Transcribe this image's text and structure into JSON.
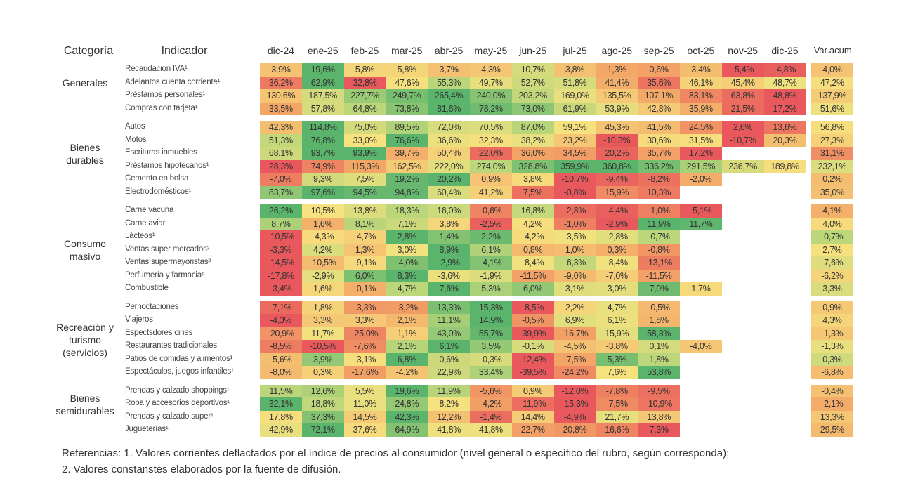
{
  "header": {
    "category": "Categoría",
    "indicator": "Indicador",
    "months": [
      "dic-24",
      "ene-25",
      "feb-25",
      "mar-25",
      "abr-25",
      "may-25",
      "jun-25",
      "jul-25",
      "ago-25",
      "sep-25",
      "oct-25",
      "nov-25",
      "dic-25"
    ],
    "acum": "Var.acum."
  },
  "colors": {
    "low": "#e8585c",
    "midlow": "#f3a466",
    "mid": "#f6e27f",
    "midhigh": "#b9d57a",
    "high": "#5bb46c"
  },
  "chart_data": {
    "type": "heatmap",
    "unit": "%",
    "groups": [
      {
        "category": "Generales",
        "rows": [
          {
            "name": "Recaudación IVA¹",
            "values": [
              3.9,
              19.6,
              5.8,
              5.8,
              3.7,
              4.3,
              10.7,
              3.8,
              1.3,
              0.6,
              3.4,
              -5.4,
              -4.8
            ],
            "acum": 4.0
          },
          {
            "name": "Adelantos cuenta corriente¹",
            "values": [
              36.2,
              62.9,
              32.8,
              47.6,
              55.3,
              49.7,
              52.7,
              51.8,
              41.4,
              35.6,
              46.1,
              45.4,
              48.7
            ],
            "acum": 47.2
          },
          {
            "name": "Préstamos personales¹",
            "values": [
              130.6,
              187.5,
              227.7,
              249.7,
              265.4,
              240.0,
              203.2,
              169.0,
              135.5,
              107.1,
              83.1,
              63.8,
              48.8
            ],
            "acum": 137.9
          },
          {
            "name": "Compras con tarjeta¹",
            "values": [
              33.5,
              57.8,
              64.8,
              73.8,
              81.6,
              78.2,
              73.0,
              61.9,
              53.9,
              42.8,
              35.9,
              21.5,
              17.2
            ],
            "acum": 51.6
          }
        ]
      },
      {
        "category": "Bienes durables",
        "rows": [
          {
            "name": "Autos",
            "values": [
              42.3,
              114.8,
              75.0,
              89.5,
              72.0,
              70.5,
              87.0,
              59.1,
              45.3,
              41.5,
              24.5,
              2.6,
              13.6
            ],
            "acum": 56.8
          },
          {
            "name": "Motos",
            "values": [
              51.3,
              76.8,
              33.0,
              76.6,
              36.6,
              32.3,
              38.2,
              23.2,
              -10.3,
              30.6,
              31.5,
              -10.7,
              20.3
            ],
            "acum": 27.3
          },
          {
            "name": "Escrituras inmuebles",
            "values": [
              68.1,
              93.7,
              93.9,
              39.7,
              50.4,
              22.0,
              36.0,
              34.5,
              20.2,
              35.7,
              17.2,
              null,
              null
            ],
            "acum": 31.1
          },
          {
            "name": "Préstamos hipotecarios¹",
            "values": [
              28.3,
              74.9,
              115.3,
              162.5,
              222.0,
              274.0,
              328.8,
              359.9,
              360.8,
              336.2,
              291.5,
              236.7,
              189.8
            ],
            "acum": 232.1
          },
          {
            "name": "Cemento en bolsa",
            "values": [
              -7.0,
              9.3,
              7.5,
              19.2,
              20.2,
              0.9,
              3.8,
              -10.7,
              -9.4,
              -8.2,
              -2.0,
              null,
              null
            ],
            "acum": 0.2
          },
          {
            "name": "Electrodomésticos¹",
            "values": [
              83.7,
              97.6,
              94.5,
              94.8,
              60.4,
              41.2,
              7.5,
              -0.8,
              15.9,
              10.3,
              null,
              null,
              null
            ],
            "acum": 35.0
          }
        ]
      },
      {
        "category": "Consumo masivo",
        "rows": [
          {
            "name": "Carne vacuna",
            "values": [
              26.2,
              10.5,
              13.8,
              18.3,
              16.0,
              -0.6,
              16.8,
              -2.8,
              -4.4,
              -1.0,
              -5.1,
              null,
              null
            ],
            "acum": 4.1
          },
          {
            "name": "Carne aviar",
            "values": [
              8.7,
              1.6,
              8.1,
              7.1,
              3.8,
              -2.5,
              4.2,
              -1.0,
              -2.9,
              11.9,
              11.7,
              null,
              null
            ],
            "acum": 4.0
          },
          {
            "name": "Lácteos¹",
            "values": [
              -10.5,
              -4.3,
              -4.7,
              2.8,
              1.4,
              2.2,
              -4.2,
              -3.5,
              -2.8,
              -0.7,
              null,
              null,
              null
            ],
            "acum": -0.7
          },
          {
            "name": "Ventas super mercados²",
            "values": [
              -3.3,
              4.2,
              1.3,
              3.0,
              8.9,
              6.1,
              0.8,
              1.0,
              0.3,
              -0.8,
              null,
              null,
              null
            ],
            "acum": 2.7
          },
          {
            "name": "Ventas supermayoristas²",
            "values": [
              -14.5,
              -10.5,
              -9.1,
              -4.0,
              -2.9,
              -4.1,
              -8.4,
              -6.3,
              -8.4,
              -13.1,
              null,
              null,
              null
            ],
            "acum": -7.6
          },
          {
            "name": "Perfumería y farmacia¹",
            "values": [
              -17.8,
              -2.9,
              6.0,
              8.3,
              -3.6,
              -1.9,
              -11.5,
              -9.0,
              -7.0,
              -11.5,
              null,
              null,
              null
            ],
            "acum": -6.2
          },
          {
            "name": "Combustible",
            "values": [
              -3.4,
              1.6,
              -0.1,
              4.7,
              7.6,
              5.3,
              6.0,
              3.1,
              3.0,
              7.0,
              1.7,
              null,
              null
            ],
            "acum": 3.3
          }
        ]
      },
      {
        "category": "Recreación y turismo (servicios)",
        "rows": [
          {
            "name": "Pernoctaciones",
            "values": [
              -7.1,
              1.8,
              -3.3,
              -3.2,
              13.3,
              15.3,
              -8.5,
              2.2,
              4.7,
              -0.5,
              null,
              null,
              null
            ],
            "acum": 0.9
          },
          {
            "name": "Viajeros",
            "values": [
              -4.3,
              3.3,
              3.3,
              2.1,
              11.1,
              14.9,
              -0.5,
              6.9,
              6.1,
              1.8,
              null,
              null,
              null
            ],
            "acum": 4.3
          },
          {
            "name": "Espectsdores cines",
            "values": [
              -20.9,
              11.7,
              -25.0,
              1.1,
              43.0,
              55.7,
              -39.9,
              -16.7,
              15.9,
              58.3,
              null,
              null,
              null
            ],
            "acum": -1.3
          },
          {
            "name": "Restaurantes tradicionales",
            "values": [
              -8.5,
              -10.5,
              -7.6,
              2.1,
              6.1,
              3.5,
              -0.1,
              -4.5,
              -3.8,
              0.1,
              -4.0,
              null,
              null
            ],
            "acum": -1.3
          },
          {
            "name": "Patios de comidas y alimentos¹",
            "values": [
              -5.6,
              3.9,
              -3.1,
              6.8,
              0.6,
              -0.3,
              -12.4,
              -7.5,
              5.3,
              1.8,
              null,
              null,
              null
            ],
            "acum": 0.3
          },
          {
            "name": "Espectáculos, juegos infantiles¹",
            "values": [
              -8.0,
              0.3,
              -17.6,
              -4.2,
              22.9,
              33.4,
              -39.5,
              -24.2,
              7.6,
              53.8,
              null,
              null,
              null
            ],
            "acum": -6.8
          }
        ]
      },
      {
        "category": "Bienes semidurables",
        "rows": [
          {
            "name": "Prendas y calzado shoppings¹",
            "values": [
              11.5,
              12.6,
              5.5,
              19.6,
              11.9,
              -5.6,
              0.9,
              -12.0,
              -7.8,
              -9.5,
              null,
              null,
              null
            ],
            "acum": -0.4
          },
          {
            "name": "Ropa y accesorios deportivos¹",
            "values": [
              32.1,
              18.8,
              11.0,
              24.8,
              8.2,
              -4.2,
              -11.9,
              -15.3,
              -7.5,
              -10.9,
              null,
              null,
              null
            ],
            "acum": -2.1
          },
          {
            "name": "Prendas y calzado super¹",
            "values": [
              17.8,
              37.3,
              14.5,
              42.3,
              12.2,
              -1.4,
              14.4,
              -4.9,
              21.7,
              13.8,
              null,
              null,
              null
            ],
            "acum": 13.3
          },
          {
            "name": "Jugueterías¹",
            "values": [
              42.9,
              72.1,
              37.6,
              64.9,
              41.8,
              41.8,
              22.7,
              20.8,
              16.6,
              7.3,
              null,
              null,
              null
            ],
            "acum": 29.5
          }
        ]
      }
    ]
  },
  "footer": {
    "line1": "Referencias: 1. Valores corrientes deflactados por el índice de precios al consumidor (nivel general o específico del rubro, según corresponda);",
    "line2": "2. Valores constanstes elaborados por la fuente de difusión."
  }
}
